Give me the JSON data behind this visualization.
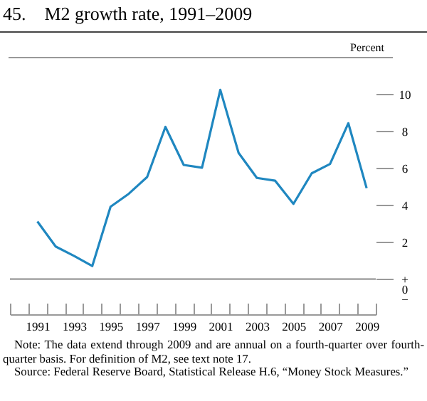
{
  "chart_data": {
    "type": "line",
    "title": "45. M2 growth rate, 1991–2009",
    "ylabel": "Percent",
    "categories": [
      "1991",
      null,
      "1993",
      null,
      "1995",
      null,
      "1997",
      null,
      "1999",
      null,
      "2001",
      null,
      "2003",
      null,
      "2005",
      null,
      "2007",
      null,
      "2009"
    ],
    "series": [
      {
        "color": "#1f87c0",
        "values": [
          3.1,
          1.75,
          1.25,
          0.7,
          3.9,
          4.6,
          5.5,
          8.2,
          6.15,
          6.0,
          10.2,
          6.8,
          5.45,
          5.3,
          4.05,
          5.7,
          6.2,
          8.4,
          4.9
        ]
      }
    ],
    "ylim": [
      -1.9,
      11.9
    ],
    "yticks": [
      {
        "value": 0,
        "label": "+\n0\n−"
      },
      2,
      4,
      6,
      8,
      10
    ],
    "ref_lines": [
      {
        "axis": "y",
        "value": 0
      }
    ],
    "grid": false,
    "annotations": [
      "Note: The data extend through 2009 and are annual on a fourth-quarter over fourth-quarter basis. For definition of M2, see text note 17.",
      "Source: Federal Reserve Board, Statistical Release H.6, “Money Stock Measures.”"
    ]
  }
}
